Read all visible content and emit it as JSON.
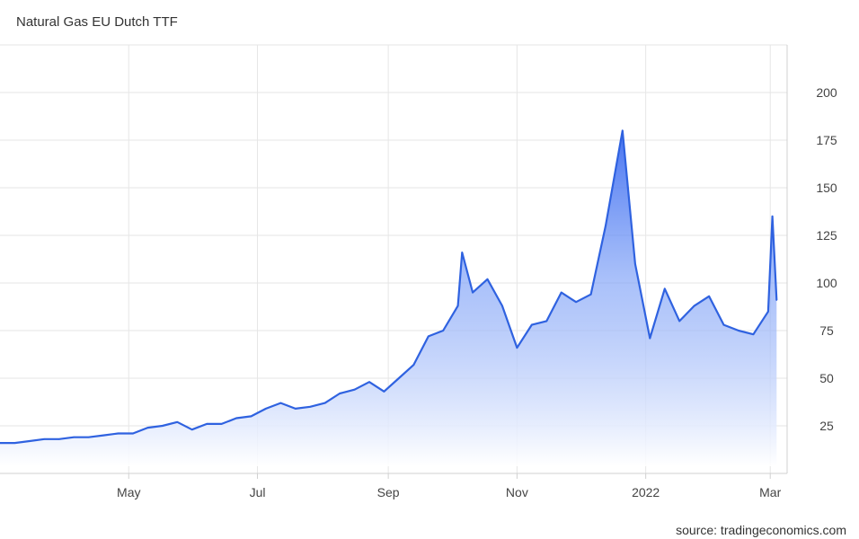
{
  "header": {
    "title": "Natural Gas EU Dutch TTF"
  },
  "footer": {
    "source": "source: tradingeconomics.com"
  },
  "colors": {
    "line": "#2f62e0",
    "fill_top": "#3d6cf0",
    "grid": "#e6e6e6",
    "axis": "#d0d0d0"
  },
  "chart_data": {
    "type": "area",
    "title": "Natural Gas EU Dutch TTF",
    "xlabel": "",
    "ylabel": "",
    "y_axis_position": "right",
    "grid": true,
    "legend": "none",
    "x_ticks": [
      {
        "label": "May",
        "date": "2021-05-01"
      },
      {
        "label": "Jul",
        "date": "2021-07-01"
      },
      {
        "label": "Sep",
        "date": "2021-09-01"
      },
      {
        "label": "Nov",
        "date": "2021-11-01"
      },
      {
        "label": "2022",
        "date": "2022-01-01"
      },
      {
        "label": "Mar",
        "date": "2022-03-01"
      }
    ],
    "y_ticks": [
      25,
      50,
      75,
      100,
      125,
      150,
      175,
      200
    ],
    "xlim": [
      "2021-03-01",
      "2022-03-09"
    ],
    "ylim": [
      0,
      225
    ],
    "series": [
      {
        "values": [
          {
            "x": "2021-03-01",
            "y": 16
          },
          {
            "x": "2021-03-08",
            "y": 16
          },
          {
            "x": "2021-03-15",
            "y": 17
          },
          {
            "x": "2021-03-22",
            "y": 18
          },
          {
            "x": "2021-03-29",
            "y": 18
          },
          {
            "x": "2021-04-05",
            "y": 19
          },
          {
            "x": "2021-04-12",
            "y": 19
          },
          {
            "x": "2021-04-19",
            "y": 20
          },
          {
            "x": "2021-04-26",
            "y": 21
          },
          {
            "x": "2021-05-03",
            "y": 21
          },
          {
            "x": "2021-05-10",
            "y": 24
          },
          {
            "x": "2021-05-17",
            "y": 25
          },
          {
            "x": "2021-05-24",
            "y": 27
          },
          {
            "x": "2021-05-31",
            "y": 23
          },
          {
            "x": "2021-06-07",
            "y": 26
          },
          {
            "x": "2021-06-14",
            "y": 26
          },
          {
            "x": "2021-06-21",
            "y": 29
          },
          {
            "x": "2021-06-28",
            "y": 30
          },
          {
            "x": "2021-07-05",
            "y": 34
          },
          {
            "x": "2021-07-12",
            "y": 37
          },
          {
            "x": "2021-07-19",
            "y": 34
          },
          {
            "x": "2021-07-26",
            "y": 35
          },
          {
            "x": "2021-08-02",
            "y": 37
          },
          {
            "x": "2021-08-09",
            "y": 42
          },
          {
            "x": "2021-08-16",
            "y": 44
          },
          {
            "x": "2021-08-23",
            "y": 48
          },
          {
            "x": "2021-08-30",
            "y": 43
          },
          {
            "x": "2021-09-06",
            "y": 50
          },
          {
            "x": "2021-09-13",
            "y": 57
          },
          {
            "x": "2021-09-20",
            "y": 72
          },
          {
            "x": "2021-09-27",
            "y": 75
          },
          {
            "x": "2021-10-04",
            "y": 88
          },
          {
            "x": "2021-10-06",
            "y": 116
          },
          {
            "x": "2021-10-11",
            "y": 95
          },
          {
            "x": "2021-10-18",
            "y": 102
          },
          {
            "x": "2021-10-25",
            "y": 88
          },
          {
            "x": "2021-11-01",
            "y": 66
          },
          {
            "x": "2021-11-08",
            "y": 78
          },
          {
            "x": "2021-11-15",
            "y": 80
          },
          {
            "x": "2021-11-22",
            "y": 95
          },
          {
            "x": "2021-11-29",
            "y": 90
          },
          {
            "x": "2021-12-06",
            "y": 94
          },
          {
            "x": "2021-12-13",
            "y": 130
          },
          {
            "x": "2021-12-21",
            "y": 180
          },
          {
            "x": "2021-12-27",
            "y": 110
          },
          {
            "x": "2022-01-03",
            "y": 71
          },
          {
            "x": "2022-01-10",
            "y": 97
          },
          {
            "x": "2022-01-17",
            "y": 80
          },
          {
            "x": "2022-01-24",
            "y": 88
          },
          {
            "x": "2022-01-31",
            "y": 93
          },
          {
            "x": "2022-02-07",
            "y": 78
          },
          {
            "x": "2022-02-14",
            "y": 75
          },
          {
            "x": "2022-02-21",
            "y": 73
          },
          {
            "x": "2022-02-28",
            "y": 85
          },
          {
            "x": "2022-03-02",
            "y": 135
          },
          {
            "x": "2022-03-04",
            "y": 91
          }
        ]
      }
    ]
  }
}
